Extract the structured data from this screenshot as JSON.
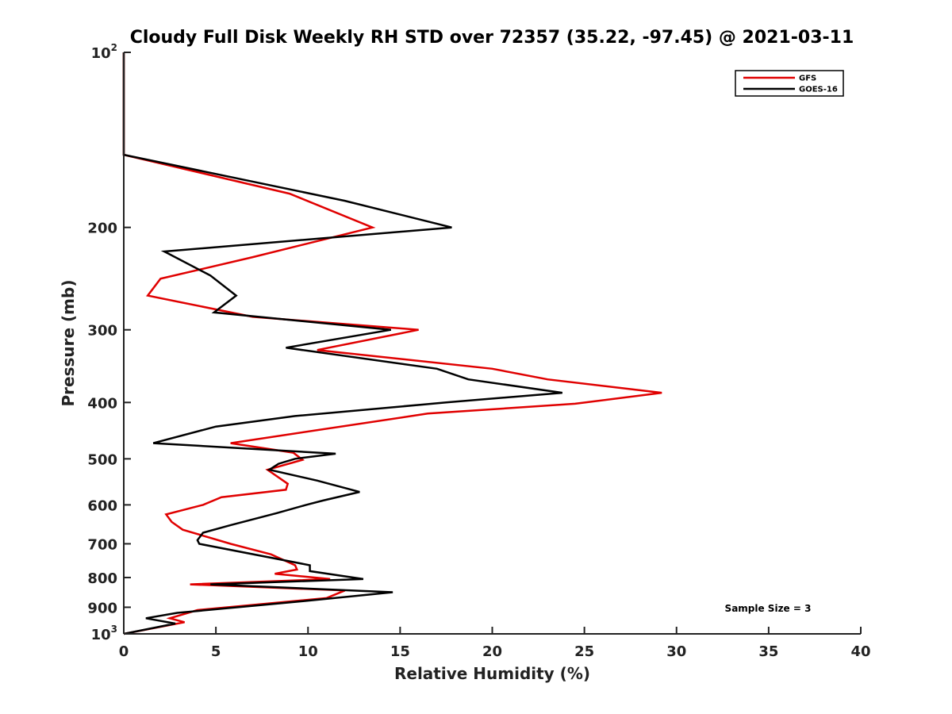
{
  "chart_data": {
    "type": "line",
    "title": "Cloudy Full Disk Weekly RH STD over 72357 (35.22, -97.45) @ 2021-03-11",
    "xlabel": "Relative Humidity (%)",
    "ylabel": "Pressure (mb)",
    "xlim": [
      0,
      40
    ],
    "ylim": [
      100,
      1000
    ],
    "y_scale": "log",
    "y_reversed": true,
    "x_ticks": [
      0,
      5,
      10,
      15,
      20,
      25,
      30,
      35,
      40
    ],
    "x_tick_labels": [
      "0",
      "5",
      "10",
      "15",
      "20",
      "25",
      "30",
      "35",
      "40"
    ],
    "y_ticks": [
      100,
      200,
      300,
      400,
      500,
      600,
      700,
      800,
      900,
      1000
    ],
    "y_tick_labels": [
      {
        "base": "10",
        "exp": "2"
      },
      {
        "base": "200"
      },
      {
        "base": "300"
      },
      {
        "base": "400"
      },
      {
        "base": "500"
      },
      {
        "base": "600"
      },
      {
        "base": "700"
      },
      {
        "base": "800"
      },
      {
        "base": "900"
      },
      {
        "base": "10",
        "exp": "3"
      }
    ],
    "grid": false,
    "legend_position": "top-right",
    "annotation": "Sample Size = 3",
    "series": [
      {
        "name": "GFS",
        "color": "#e00000",
        "points": [
          [
            0,
            100
          ],
          [
            0,
            150
          ],
          [
            9,
            175
          ],
          [
            13.5,
            200
          ],
          [
            7,
            225
          ],
          [
            2,
            245
          ],
          [
            1.3,
            262
          ],
          [
            7,
            285
          ],
          [
            16,
            300
          ],
          [
            10.5,
            325
          ],
          [
            20,
            350
          ],
          [
            23,
            365
          ],
          [
            29.2,
            385
          ],
          [
            24.5,
            402
          ],
          [
            16.5,
            418
          ],
          [
            5.8,
            470
          ],
          [
            9.2,
            488
          ],
          [
            9.7,
            502
          ],
          [
            7.8,
            522
          ],
          [
            8.9,
            552
          ],
          [
            8.8,
            565
          ],
          [
            5.3,
            582
          ],
          [
            4.3,
            600
          ],
          [
            2.3,
            623
          ],
          [
            2.6,
            642
          ],
          [
            3.2,
            662
          ],
          [
            5.8,
            700
          ],
          [
            8,
            730
          ],
          [
            9.3,
            762
          ],
          [
            9.4,
            775
          ],
          [
            8.2,
            788
          ],
          [
            11.2,
            805
          ],
          [
            3.6,
            822
          ],
          [
            12,
            842
          ],
          [
            11,
            868
          ],
          [
            4,
            910
          ],
          [
            2.5,
            940
          ],
          [
            3.3,
            955
          ],
          [
            0,
            1000
          ]
        ]
      },
      {
        "name": "GOES-16",
        "color": "#000000",
        "points": [
          [
            0,
            100
          ],
          [
            0,
            150
          ],
          [
            12,
            180
          ],
          [
            17.8,
            200
          ],
          [
            2.2,
            220
          ],
          [
            4.7,
            242
          ],
          [
            6.1,
            262
          ],
          [
            4.9,
            280
          ],
          [
            14.5,
            300
          ],
          [
            8.8,
            322
          ],
          [
            17,
            350
          ],
          [
            18.7,
            365
          ],
          [
            23.8,
            385
          ],
          [
            17.5,
            400
          ],
          [
            9.3,
            422
          ],
          [
            5,
            440
          ],
          [
            1.6,
            470
          ],
          [
            11.5,
            490
          ],
          [
            9.3,
            500
          ],
          [
            8.4,
            510
          ],
          [
            7.9,
            522
          ],
          [
            10.5,
            545
          ],
          [
            12.8,
            570
          ],
          [
            10.8,
            590
          ],
          [
            9.9,
            600
          ],
          [
            8.3,
            620
          ],
          [
            5.8,
            650
          ],
          [
            4.3,
            670
          ],
          [
            4,
            690
          ],
          [
            4.1,
            700
          ],
          [
            10.1,
            762
          ],
          [
            10.1,
            780
          ],
          [
            13,
            805
          ],
          [
            4.7,
            822
          ],
          [
            14.6,
            848
          ],
          [
            9.5,
            880
          ],
          [
            2.9,
            920
          ],
          [
            1.2,
            940
          ],
          [
            2.8,
            960
          ],
          [
            0,
            1000
          ]
        ]
      }
    ]
  }
}
